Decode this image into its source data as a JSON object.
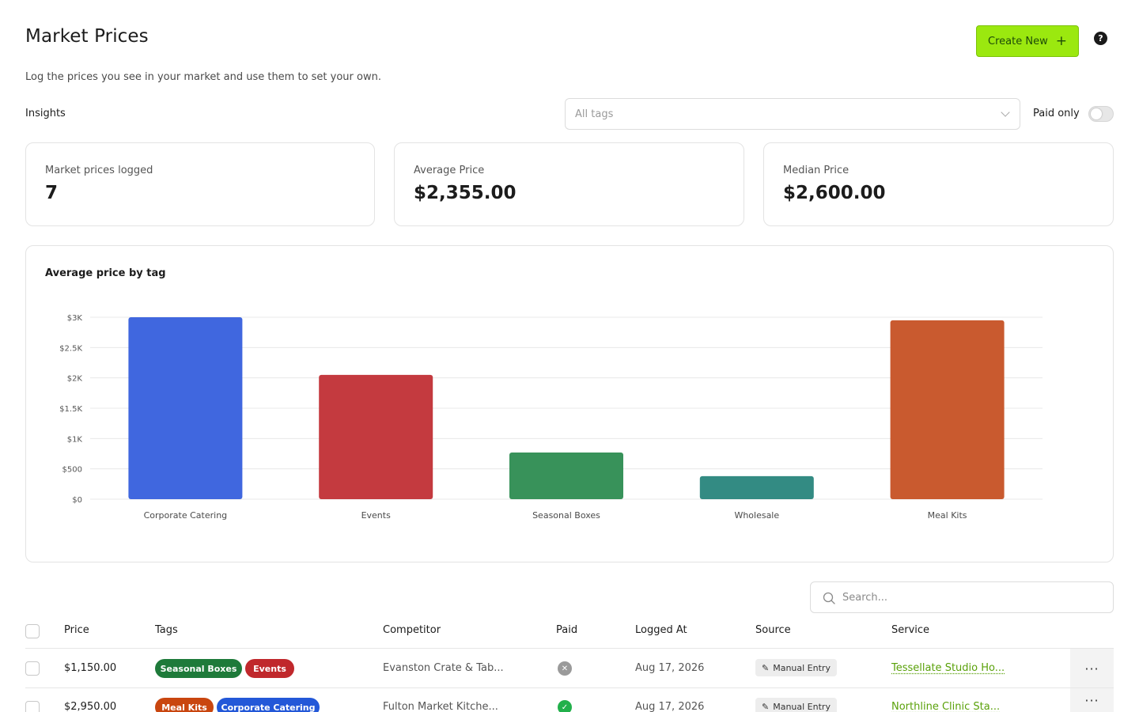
{
  "header": {
    "title": "Market Prices",
    "subtitle": "Log the prices you see in your market and use them to set your own.",
    "create_label": "Create New",
    "create_icon": "plus-icon",
    "help_icon": "help-circle-icon"
  },
  "filters": {
    "insights_label": "Insights",
    "tags_placeholder": "All tags",
    "paid_only_label": "Paid only",
    "paid_only_on": false
  },
  "stats": [
    {
      "label": "Market prices logged",
      "value": "7"
    },
    {
      "label": "Average Price",
      "value": "$2,355.00"
    },
    {
      "label": "Median Price",
      "value": "$2,600.00"
    }
  ],
  "chart_data": {
    "type": "bar",
    "title": "Average price by tag",
    "categories": [
      "Corporate Catering",
      "Events",
      "Seasonal Boxes",
      "Wholesale",
      "Meal Kits"
    ],
    "values": [
      3000,
      2050,
      770,
      380,
      2950
    ],
    "colors": [
      "#4067df",
      "#c43a3f",
      "#38925a",
      "#338b83",
      "#c95a2f"
    ],
    "ylim": [
      0,
      3000
    ],
    "yticks": [
      0,
      500,
      1000,
      1500,
      2000,
      2500,
      3000
    ],
    "ytick_labels": [
      "$0",
      "$500",
      "$1K",
      "$1.5K",
      "$2K",
      "$2.5K",
      "$3K"
    ],
    "grid": true
  },
  "table": {
    "search_placeholder": "Search...",
    "columns": [
      "Price",
      "Tags",
      "Competitor",
      "Paid",
      "Logged At",
      "Source",
      "Service"
    ],
    "rows": [
      {
        "price": "$1,150.00",
        "tags": [
          {
            "label": "Seasonal Boxes",
            "color": "#1e7a3a"
          },
          {
            "label": "Events",
            "color": "#c0282c"
          }
        ],
        "competitor": "Evanston Crate & Tab...",
        "paid": false,
        "logged_at": "Aug 17, 2026",
        "source": "Manual Entry",
        "service": "Tessellate Studio Ho..."
      },
      {
        "price": "$2,950.00",
        "tags": [
          {
            "label": "Meal Kits",
            "color": "#c9460f"
          },
          {
            "label": "Corporate Catering",
            "color": "#2358d8"
          }
        ],
        "competitor": "Fulton Market Kitche...",
        "paid": true,
        "logged_at": "Aug 17, 2026",
        "source": "Manual Entry",
        "service": "Northline Clinic Sta..."
      }
    ]
  }
}
